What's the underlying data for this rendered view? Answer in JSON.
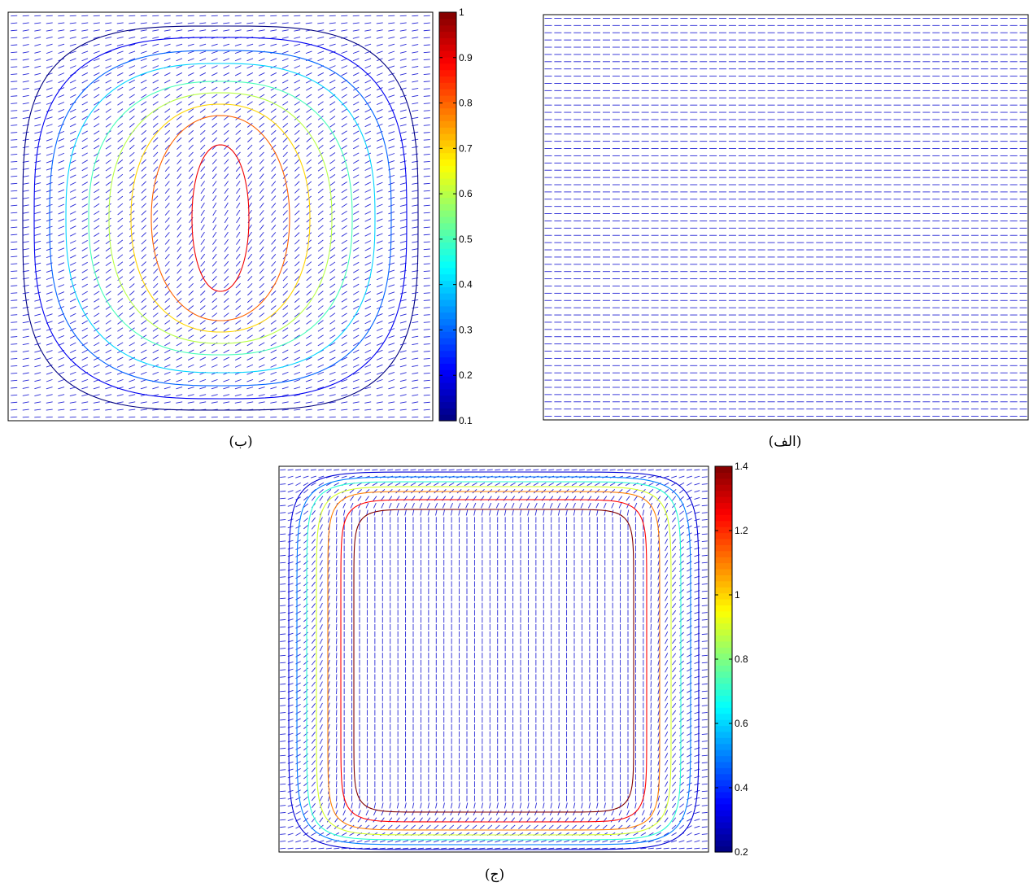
{
  "captions": {
    "panel_a": "(الف)",
    "panel_b": "(ب)",
    "panel_c": "(ج)"
  },
  "chart_data": [
    {
      "id": "panel_b",
      "type": "contour",
      "title": "",
      "xlabel": "",
      "ylabel": "",
      "description_of_field": "director field (short dashed line segments) with nested closed contour lines",
      "colorbar": {
        "min": 0.1,
        "max": 1,
        "ticks": [
          "0.1",
          "0.2",
          "0.3",
          "0.4",
          "0.5",
          "0.6",
          "0.7",
          "0.8",
          "0.9",
          "1"
        ],
        "colormap": "jet"
      },
      "contour_levels": [
        0.1,
        0.2,
        0.3,
        0.4,
        0.5,
        0.6,
        0.7,
        0.8,
        0.9
      ],
      "peak_value": 0.96,
      "director_pattern": "horizontal near edges, tilted toward diagonal in center",
      "grid": false
    },
    {
      "id": "panel_a",
      "type": "field",
      "title": "",
      "xlabel": "",
      "ylabel": "",
      "director_pattern": "uniform horizontal",
      "grid": false
    },
    {
      "id": "panel_c",
      "type": "contour",
      "title": "",
      "xlabel": "",
      "ylabel": "",
      "colorbar": {
        "min": 0.2,
        "max": 1.4,
        "ticks": [
          "0.2",
          "0.4",
          "0.6",
          "0.8",
          "1",
          "1.2",
          "1.4"
        ],
        "colormap": "jet"
      },
      "contour_levels": [
        0.3,
        0.5,
        0.7,
        0.9,
        1.1,
        1.25,
        1.4
      ],
      "peak_value": 1.45,
      "director_pattern": "vertical in center, horizontal near top/bottom/left/right edges",
      "grid": false
    }
  ]
}
